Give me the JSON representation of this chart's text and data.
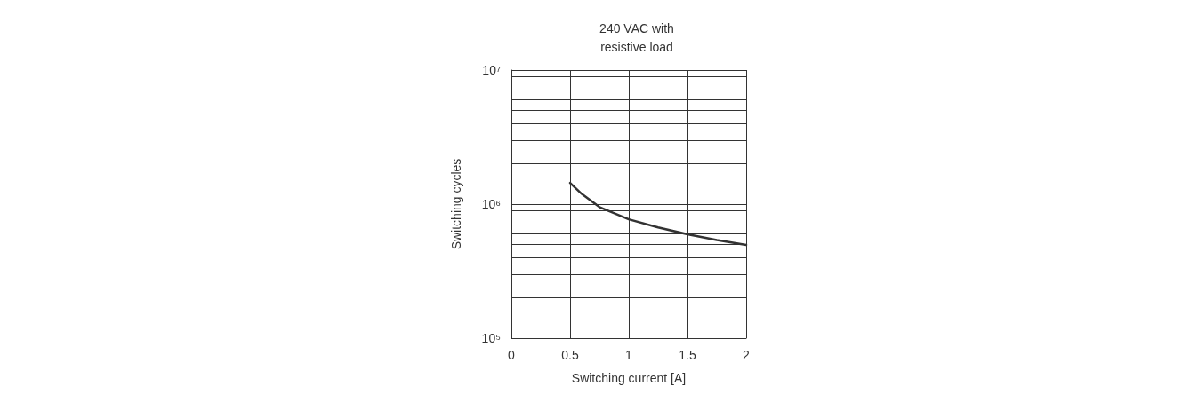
{
  "chart_data": {
    "type": "line",
    "title": "240 VAC with\nresistive load",
    "xlabel": "Switching current [A]",
    "ylabel": "Switching cycles",
    "log": "y",
    "grid": true,
    "marker": "none",
    "line_style": "solid",
    "x": [
      0.5,
      0.6,
      0.75,
      1.0,
      1.25,
      1.5,
      1.75,
      2.0
    ],
    "series": [
      {
        "color": "#333333",
        "values": [
          1440000,
          1190000,
          950000,
          770000,
          670000,
          596000,
          540000,
          496000
        ]
      }
    ],
    "xlim": [
      0,
      2
    ],
    "xticks": [
      0,
      0.5,
      1,
      1.5,
      2
    ],
    "ylim": [
      100000,
      10000000
    ],
    "yticks": [
      {
        "value": 100000,
        "label": "10⁵"
      },
      {
        "value": 200000,
        "label": null
      },
      {
        "value": 300000,
        "label": null
      },
      {
        "value": 400000,
        "label": null
      },
      {
        "value": 500000,
        "label": null
      },
      {
        "value": 600000,
        "label": null
      },
      {
        "value": 700000,
        "label": null
      },
      {
        "value": 800000,
        "label": null
      },
      {
        "value": 900000,
        "label": null
      },
      {
        "value": 1000000,
        "label": "10⁶"
      },
      {
        "value": 2000000,
        "label": null
      },
      {
        "value": 3000000,
        "label": null
      },
      {
        "value": 4000000,
        "label": null
      },
      {
        "value": 5000000,
        "label": null
      },
      {
        "value": 6000000,
        "label": null
      },
      {
        "value": 7000000,
        "label": null
      },
      {
        "value": 8000000,
        "label": null
      },
      {
        "value": 9000000,
        "label": null
      },
      {
        "value": 10000000,
        "label": "10⁷"
      }
    ]
  }
}
